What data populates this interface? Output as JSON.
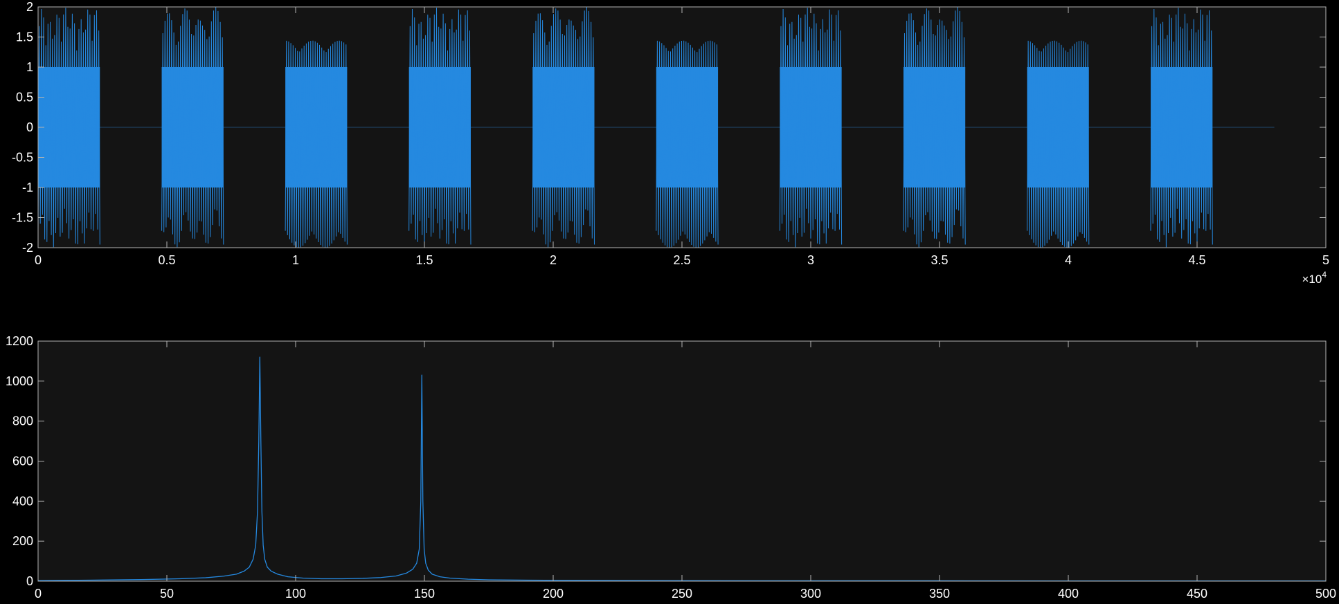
{
  "colors": {
    "figure_background": "#000000",
    "axes_background": "#141414",
    "axes_edge": "#b4b4b4",
    "tick_text": "#ffffff",
    "series": "#2589e0"
  },
  "chart_data": [
    {
      "type": "line",
      "name": "time-domain-plot",
      "title": "",
      "xlabel": "",
      "ylabel": "",
      "xlim": [
        0,
        50000
      ],
      "ylim": [
        -2,
        2
      ],
      "grid": false,
      "legend": "none",
      "x_exponent": {
        "base": "×10",
        "power": "4"
      },
      "xticks": [
        0,
        5000,
        10000,
        15000,
        20000,
        25000,
        30000,
        35000,
        40000,
        45000,
        50000
      ],
      "xtick_labels": [
        "0",
        "0.5",
        "1",
        "1.5",
        "2",
        "2.5",
        "3",
        "3.5",
        "4",
        "4.5",
        "5"
      ],
      "yticks": [
        -2,
        -1.5,
        -1,
        -0.5,
        0,
        0.5,
        1,
        1.5,
        2
      ],
      "ytick_labels": [
        "-2",
        "-1.5",
        "-1",
        "-0.5",
        "0",
        "0.5",
        "1",
        "1.5",
        "2"
      ],
      "signal_end": 48000,
      "bursts": [
        {
          "start": 0,
          "end": 2400,
          "amplitude": 2
        },
        {
          "start": 4800,
          "end": 7200,
          "amplitude": 2
        },
        {
          "start": 9600,
          "end": 12000,
          "amplitude": 2
        },
        {
          "start": 14400,
          "end": 16800,
          "amplitude": 2
        },
        {
          "start": 19200,
          "end": 21600,
          "amplitude": 2
        },
        {
          "start": 24000,
          "end": 26400,
          "amplitude": 2
        },
        {
          "start": 28800,
          "end": 31200,
          "amplitude": 2
        },
        {
          "start": 33600,
          "end": 36000,
          "amplitude": 2
        },
        {
          "start": 38400,
          "end": 40800,
          "amplitude": 2
        },
        {
          "start": 43200,
          "end": 45600,
          "amplitude": 2
        }
      ]
    },
    {
      "type": "line",
      "name": "frequency-spectrum-plot",
      "title": "",
      "xlabel": "",
      "ylabel": "",
      "xlim": [
        0,
        500
      ],
      "ylim": [
        0,
        1200
      ],
      "grid": false,
      "legend": "none",
      "xticks": [
        0,
        50,
        100,
        150,
        200,
        250,
        300,
        350,
        400,
        450,
        500
      ],
      "xtick_labels": [
        "0",
        "50",
        "100",
        "150",
        "200",
        "250",
        "300",
        "350",
        "400",
        "450",
        "500"
      ],
      "yticks": [
        0,
        200,
        400,
        600,
        800,
        1000,
        1200
      ],
      "ytick_labels": [
        "0",
        "200",
        "400",
        "600",
        "800",
        "1000",
        "1200"
      ],
      "x": [
        0,
        20,
        40,
        55,
        65,
        72,
        77,
        80,
        82,
        83.5,
        84.5,
        85.2,
        85.7,
        86.1,
        86.5,
        86.9,
        87.4,
        88,
        89,
        90.5,
        93,
        97,
        103,
        110,
        118,
        126,
        133,
        139,
        143,
        145.5,
        147,
        148,
        148.6,
        149,
        149.4,
        149.9,
        150.5,
        151.5,
        153,
        156,
        160,
        167,
        175,
        190,
        210,
        240,
        280,
        350,
        420,
        500
      ],
      "y": [
        3,
        5,
        8,
        12,
        17,
        25,
        35,
        50,
        70,
        110,
        180,
        350,
        700,
        1120,
        700,
        350,
        180,
        110,
        70,
        50,
        35,
        22,
        15,
        12,
        12,
        14,
        18,
        26,
        40,
        60,
        90,
        160,
        400,
        1030,
        400,
        160,
        90,
        55,
        35,
        22,
        15,
        10,
        7,
        5,
        4,
        3,
        2,
        2,
        1,
        1
      ]
    }
  ]
}
